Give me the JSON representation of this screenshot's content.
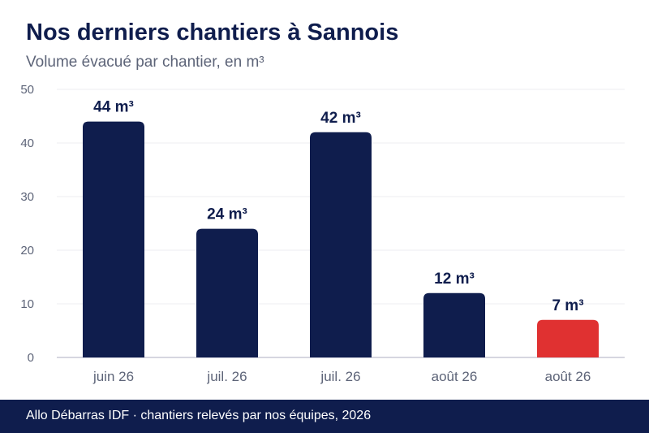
{
  "title": "Nos derniers chantiers à Sannois",
  "subtitle": "Volume évacué par chantier, en m³",
  "footer": "Allo Débarras IDF · chantiers relevés par nos équipes, 2026",
  "colors": {
    "bar": "#0f1d4d",
    "highlight": "#e03131",
    "grid": "#ececf0",
    "axis": "#c9c9d6",
    "tick": "#5d6478",
    "label": "#0f1d4d"
  },
  "chart_data": {
    "type": "bar",
    "categories": [
      "juin 26",
      "juil. 26",
      "juil. 26",
      "août 26",
      "août 26"
    ],
    "values": [
      44,
      24,
      42,
      12,
      7
    ],
    "value_labels": [
      "44 m³",
      "24 m³",
      "42 m³",
      "12 m³",
      "7 m³"
    ],
    "highlight_index": 4,
    "ylim": [
      0,
      50
    ],
    "yticks": [
      0,
      10,
      20,
      30,
      40,
      50
    ],
    "grid": true,
    "xlabel": "",
    "ylabel": ""
  }
}
